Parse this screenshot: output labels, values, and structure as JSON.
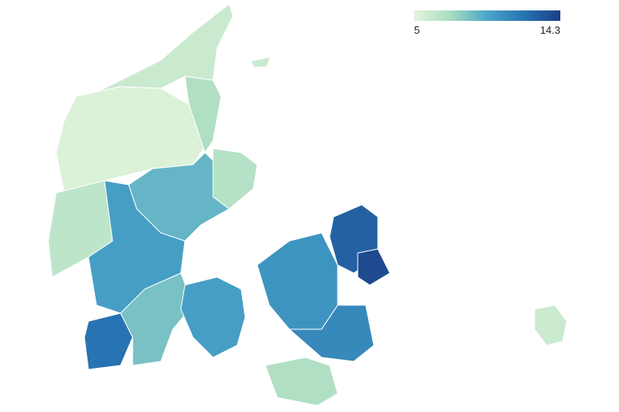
{
  "legend": {
    "min": 5,
    "max": 14.3,
    "colors": [
      "#e3f4dc",
      "#a8dcc0",
      "#4ba6c8",
      "#2874b2",
      "#1d3f87"
    ]
  },
  "regions": {
    "values": [
      6,
      5.3,
      7,
      6.5,
      9,
      6.8,
      10,
      12,
      8.5,
      10,
      10.5,
      12.8,
      13.8,
      11,
      7,
      6,
      6
    ]
  }
}
